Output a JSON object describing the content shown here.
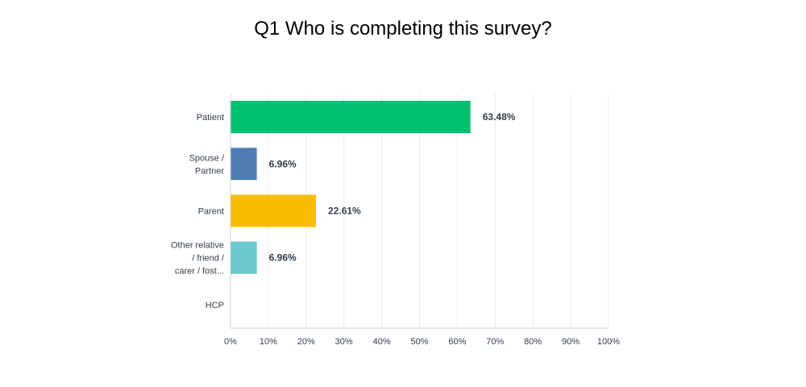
{
  "title": "Q1 Who is completing this survey?",
  "chart_data": {
    "type": "bar",
    "orientation": "horizontal",
    "title": "Q1 Who is completing this survey?",
    "categories": [
      [
        "Patient"
      ],
      [
        "Spouse /",
        "Partner"
      ],
      [
        "Parent"
      ],
      [
        "Other relative",
        "/ friend /",
        "carer / fost..."
      ],
      [
        "HCP"
      ]
    ],
    "values": [
      63.48,
      6.96,
      22.61,
      6.96,
      0
    ],
    "data_labels": [
      "63.48%",
      "6.96%",
      "22.61%",
      "6.96%",
      ""
    ],
    "colors": [
      "#00bf6f",
      "#507cb6",
      "#f9be00",
      "#6bc8cd",
      "#ff8b4f"
    ],
    "xlim": [
      0,
      100
    ],
    "x_ticks": [
      "0%",
      "10%",
      "20%",
      "30%",
      "40%",
      "50%",
      "60%",
      "70%",
      "80%",
      "90%",
      "100%"
    ],
    "grid": true,
    "gridline_color": "#ececec",
    "axis_color": "#d0d0d0"
  }
}
